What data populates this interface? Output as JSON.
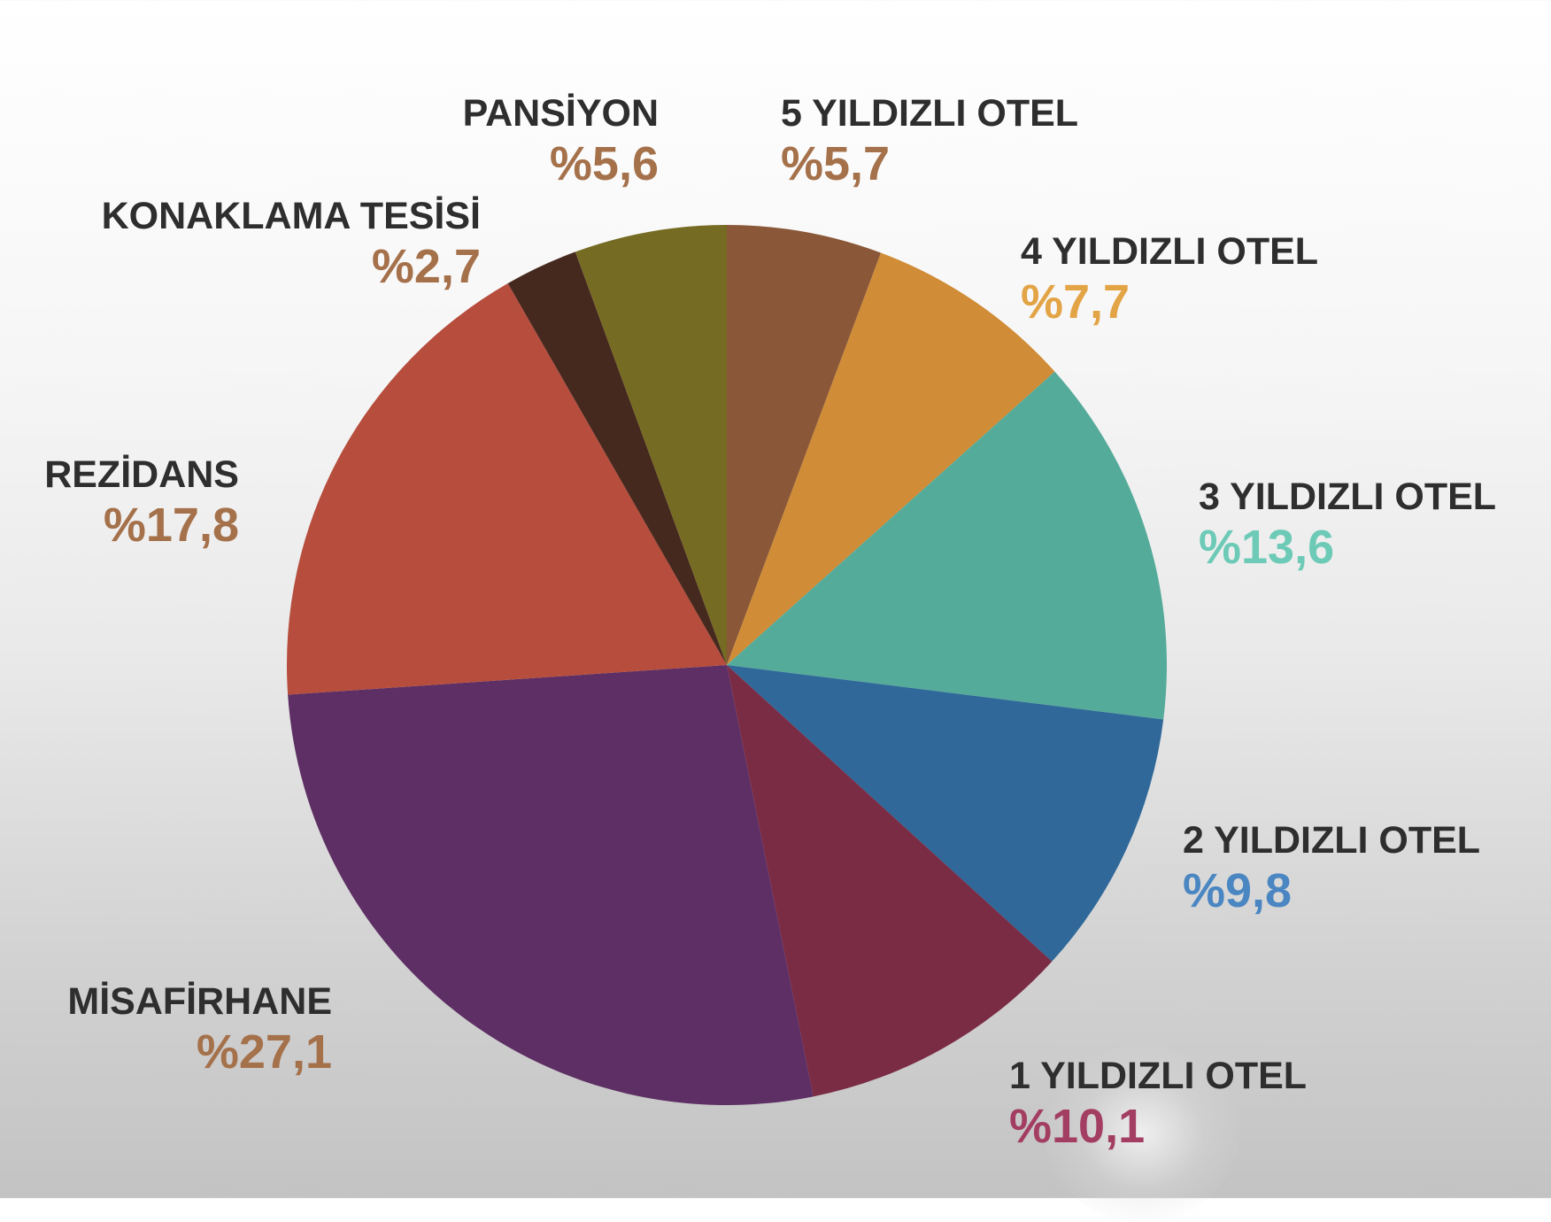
{
  "chart_data": {
    "type": "pie",
    "slices": [
      {
        "label": "5 YILDIZLI OTEL",
        "value": 5.7,
        "value_label": "%5,7",
        "color": "#8a5838",
        "label_color": "#a5714b"
      },
      {
        "label": "4 YILDIZLI OTEL",
        "value": 7.7,
        "value_label": "%7,7",
        "color": "#d08c36",
        "label_color": "#e3a446"
      },
      {
        "label": "3 YILDIZLI OTEL",
        "value": 13.6,
        "value_label": "%13,6",
        "color": "#55ab9a",
        "label_color": "#6ccab6"
      },
      {
        "label": "2 YILDIZLI OTEL",
        "value": 9.8,
        "value_label": "%9,8",
        "color": "#2f6899",
        "label_color": "#4a86c2"
      },
      {
        "label": "1 YILDIZLI OTEL",
        "value": 10.1,
        "value_label": "%10,1",
        "color": "#7a2c45",
        "label_color": "#a33e62"
      },
      {
        "label": "MİSAFİRHANE",
        "value": 27.1,
        "value_label": "%27,1",
        "color": "#5e2f64",
        "label_color": "#a5714b"
      },
      {
        "label": "REZİDANS",
        "value": 17.8,
        "value_label": "%17,8",
        "color": "#b64d3d",
        "label_color": "#a5714b"
      },
      {
        "label": "KONAKLAMA TESİSİ",
        "value": 2.7,
        "value_label": "%2,7",
        "color": "#46291e",
        "label_color": "#a5714b"
      },
      {
        "label": "PANSİYON",
        "value": 5.6,
        "value_label": "%5,6",
        "color": "#756b22",
        "label_color": "#a5714b"
      }
    ],
    "start": "top",
    "direction": "clockwise",
    "legend": "none"
  }
}
